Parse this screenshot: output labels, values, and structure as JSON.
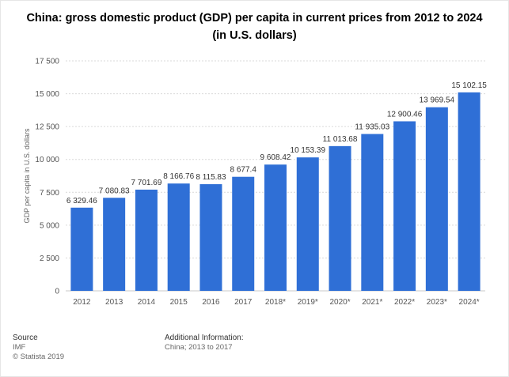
{
  "chart_data": {
    "type": "bar",
    "title_line1": "China: gross domestic product (GDP) per capita in current prices from 2012 to 2024",
    "title_line2": "(in U.S. dollars)",
    "xlabel": "",
    "ylabel": "GDP per capita in U.S. dollars",
    "ylim": [
      0,
      17500
    ],
    "yticks": [
      0,
      2500,
      5000,
      7500,
      10000,
      12500,
      15000,
      17500
    ],
    "ytick_labels": [
      "0",
      "2 500",
      "5 000",
      "7 500",
      "10 000",
      "12 500",
      "15 000",
      "17 500"
    ],
    "categories": [
      "2012",
      "2013",
      "2014",
      "2015",
      "2016",
      "2017",
      "2018*",
      "2019*",
      "2020*",
      "2021*",
      "2022*",
      "2023*",
      "2024*"
    ],
    "values": [
      6329.46,
      7080.83,
      7701.69,
      8166.76,
      8115.83,
      8677.4,
      9608.42,
      10153.39,
      11013.68,
      11935.03,
      12900.46,
      13969.54,
      15102.15
    ],
    "value_labels": [
      "6 329.46",
      "7 080.83",
      "7 701.69",
      "8 166.76",
      "8 115.83",
      "8 677.4",
      "9 608.42",
      "10 153.39",
      "11 013.68",
      "11 935.03",
      "12 900.46",
      "13 969.54",
      "15 102.15"
    ],
    "grid": true,
    "bar_color": "#2f6fd6"
  },
  "footer": {
    "source_heading": "Source",
    "source_name": "IMF",
    "copyright": "© Statista 2019",
    "additional_heading": "Additional Information:",
    "additional_text": "China; 2013 to 2017"
  }
}
